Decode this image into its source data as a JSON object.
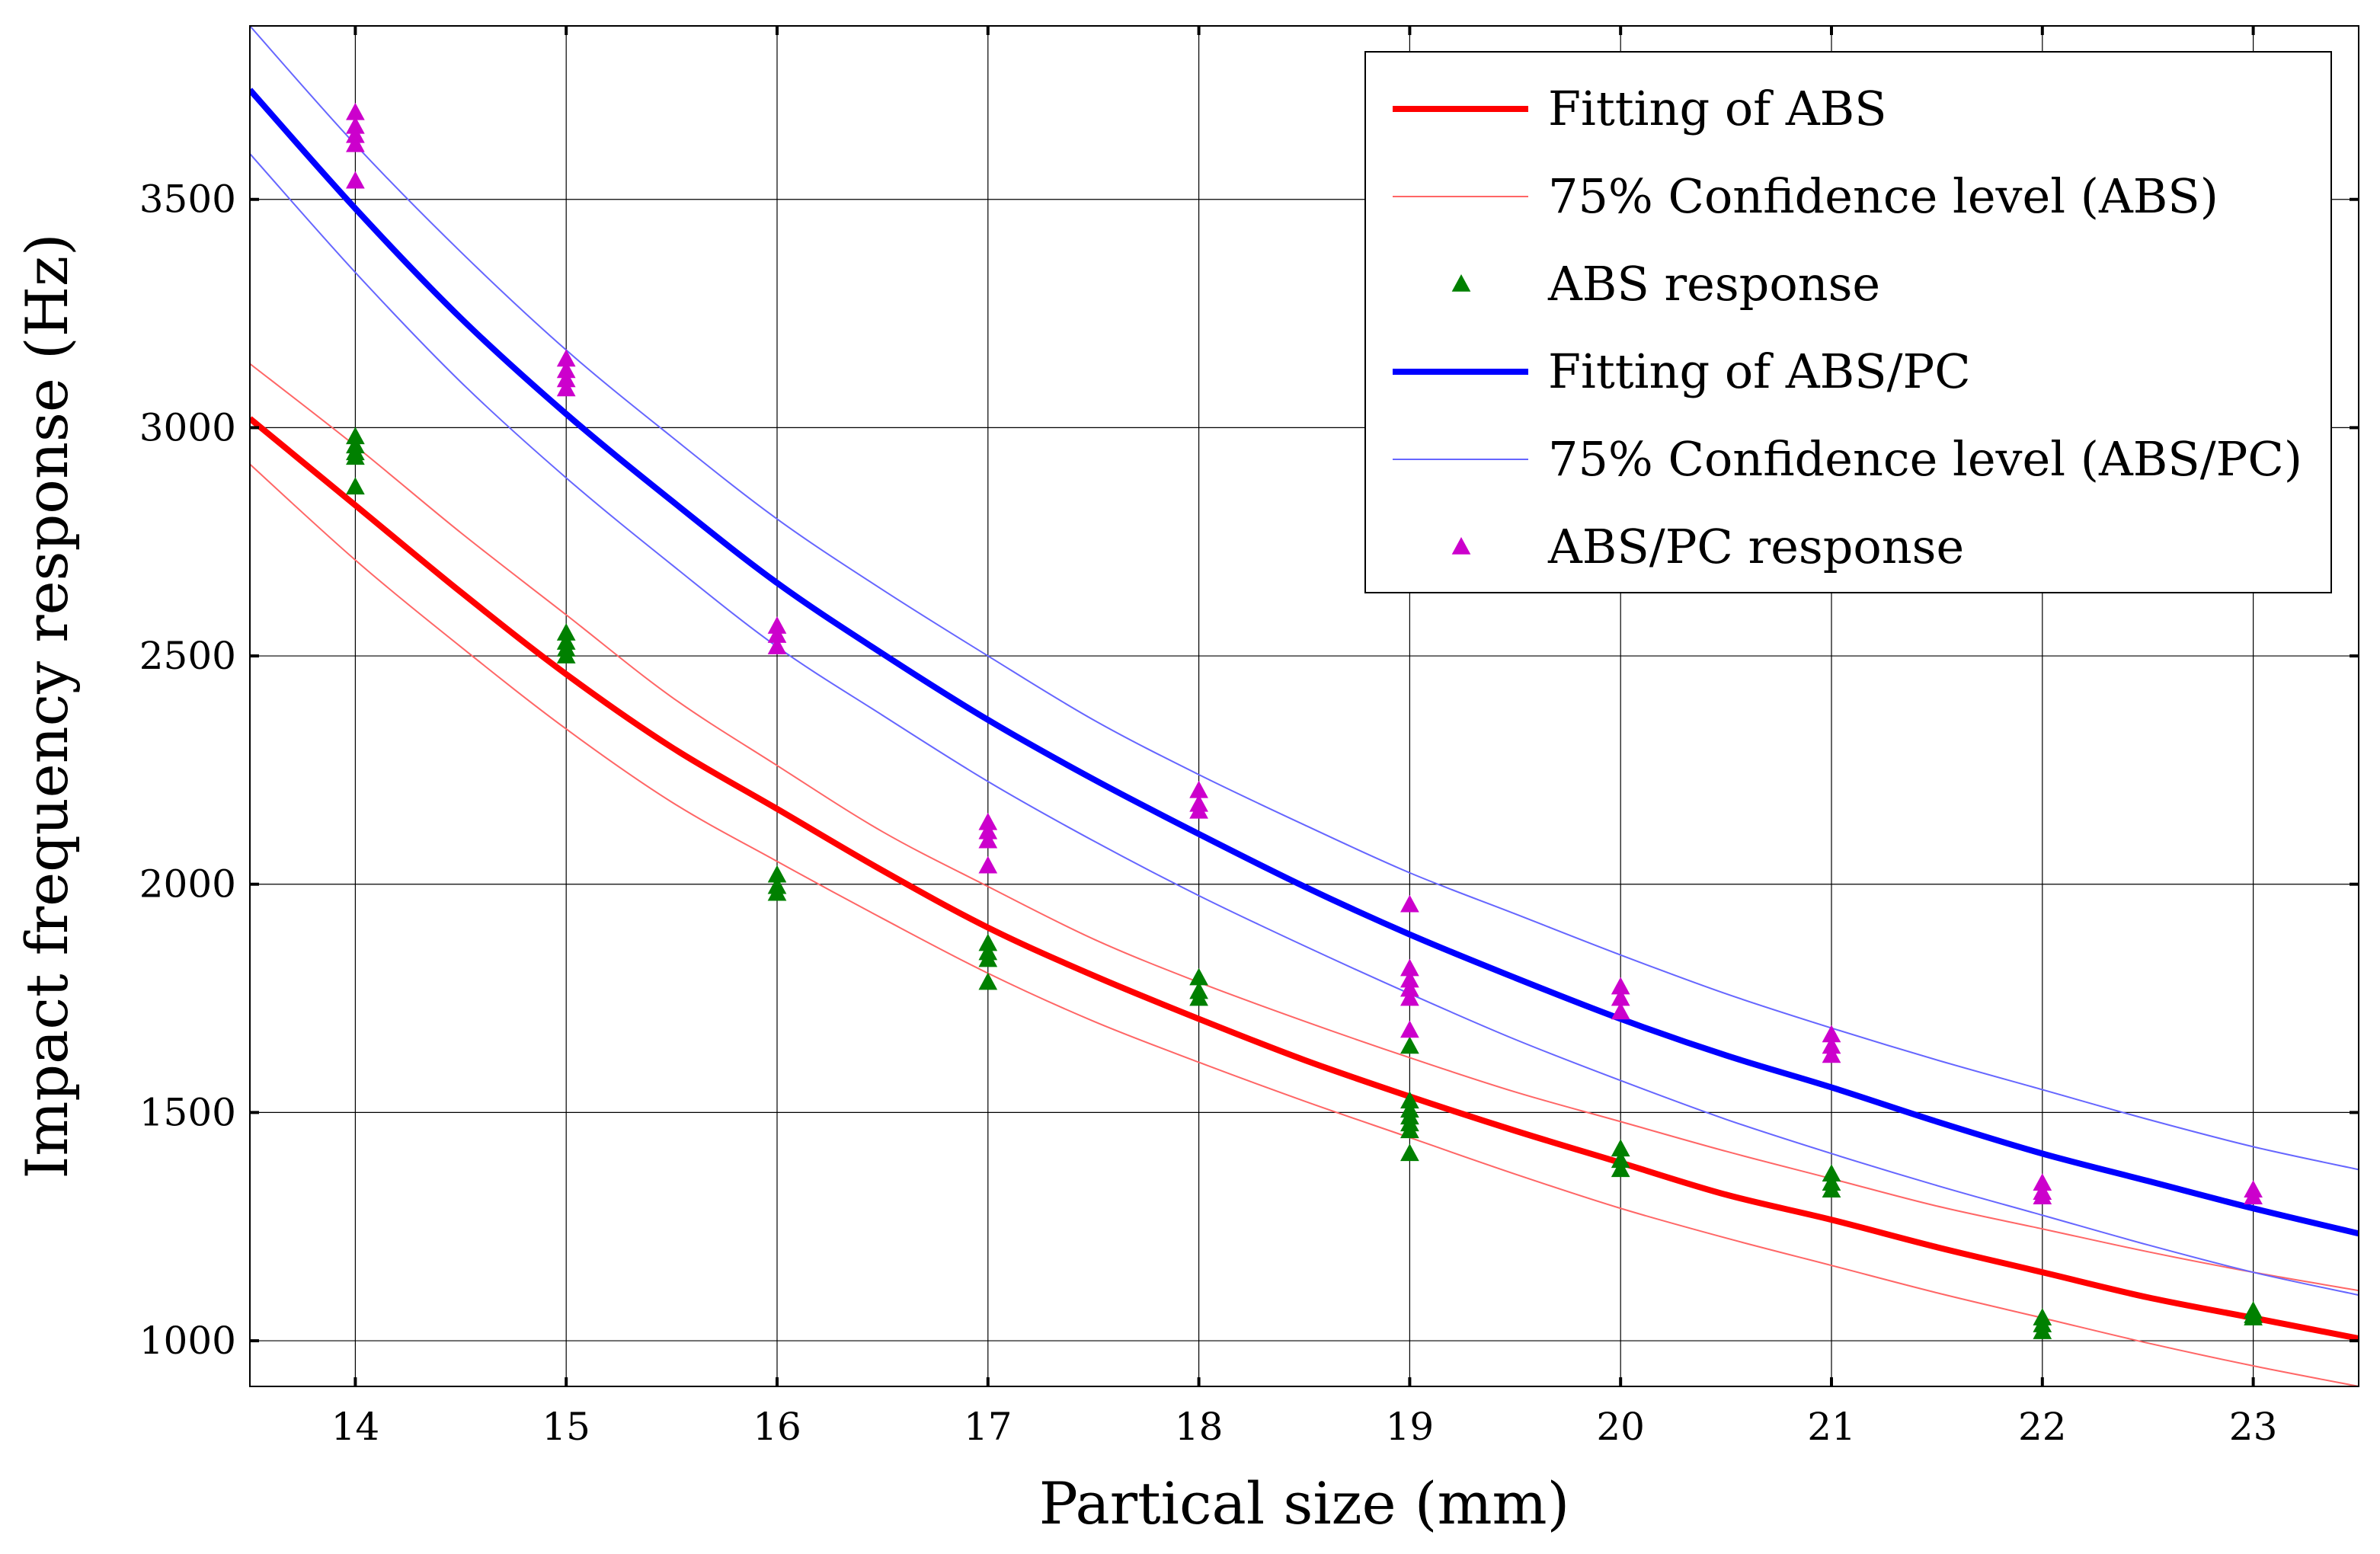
{
  "chart_data": {
    "type": "line",
    "title": "",
    "xlabel": "Partical size (mm)",
    "ylabel": "Impact frequency response (Hz)",
    "xlim": [
      13.5,
      23.5
    ],
    "ylim": [
      900,
      3880
    ],
    "xticks": [
      14,
      15,
      16,
      17,
      18,
      19,
      20,
      21,
      22,
      23
    ],
    "yticks": [
      1000,
      1500,
      2000,
      2500,
      3000,
      3500
    ],
    "grid": true,
    "legend_position": "top-right",
    "colors": {
      "abs_fit": "#ff0000",
      "abs_conf": "#ff6666",
      "abs_points": "#008000",
      "abspc_fit": "#0000ff",
      "abspc_conf": "#6666ff",
      "abspc_points": "#cc00cc"
    },
    "series": [
      {
        "name": "Fitting of ABS",
        "kind": "fit",
        "x": [
          13.5,
          14,
          14.5,
          15,
          15.5,
          16,
          16.5,
          17,
          17.5,
          18,
          18.5,
          19,
          19.5,
          20,
          20.5,
          21,
          21.5,
          22,
          22.5,
          23,
          23.5
        ],
        "y": [
          3020,
          2830,
          2640,
          2460,
          2300,
          2165,
          2030,
          1905,
          1800,
          1705,
          1615,
          1535,
          1460,
          1390,
          1320,
          1265,
          1205,
          1150,
          1095,
          1050,
          1005
        ]
      },
      {
        "name": "75% Confidence level (ABS)",
        "kind": "conf_upper",
        "x": [
          13.5,
          14,
          14.5,
          15,
          15.5,
          16,
          16.5,
          17,
          17.5,
          18,
          18.5,
          19,
          19.5,
          20,
          20.5,
          21,
          21.5,
          22,
          22.5,
          23,
          23.5
        ],
        "y": [
          3140,
          2960,
          2770,
          2590,
          2410,
          2260,
          2115,
          1995,
          1880,
          1785,
          1700,
          1620,
          1545,
          1480,
          1415,
          1355,
          1295,
          1245,
          1195,
          1150,
          1110
        ]
      },
      {
        "name": "75% Confidence level (ABS) lower",
        "kind": "conf_lower",
        "x": [
          13.5,
          14,
          14.5,
          15,
          15.5,
          16,
          16.5,
          17,
          17.5,
          18,
          18.5,
          19,
          19.5,
          20,
          20.5,
          21,
          21.5,
          22,
          22.5,
          23,
          23.5
        ],
        "y": [
          2920,
          2710,
          2520,
          2340,
          2180,
          2050,
          1925,
          1805,
          1700,
          1610,
          1525,
          1445,
          1365,
          1290,
          1225,
          1165,
          1105,
          1050,
          995,
          945,
          900
        ]
      },
      {
        "name": "ABS response",
        "kind": "points",
        "x": [
          14,
          14,
          14,
          14,
          14,
          15,
          15,
          15,
          15,
          16,
          16,
          16,
          17,
          17,
          17,
          17,
          18,
          18,
          18,
          19,
          19,
          19,
          19,
          19,
          19,
          19,
          20,
          20,
          20,
          21,
          21,
          21,
          22,
          22,
          22,
          23,
          23,
          23
        ],
        "y": [
          2980,
          2960,
          2945,
          2935,
          2870,
          2550,
          2530,
          2515,
          2500,
          2020,
          1995,
          1980,
          1870,
          1850,
          1835,
          1785,
          1795,
          1765,
          1750,
          1645,
          1525,
          1505,
          1490,
          1475,
          1460,
          1410,
          1420,
          1395,
          1375,
          1365,
          1345,
          1330,
          1050,
          1035,
          1020,
          1065,
          1055,
          1050
        ]
      },
      {
        "name": "Fitting of ABS/PC",
        "kind": "fit",
        "x": [
          13.5,
          14,
          14.5,
          15,
          15.5,
          16,
          16.5,
          17,
          17.5,
          18,
          18.5,
          19,
          19.5,
          20,
          20.5,
          21,
          21.5,
          22,
          22.5,
          23,
          23.5
        ],
        "y": [
          3740,
          3480,
          3240,
          3030,
          2840,
          2660,
          2505,
          2360,
          2230,
          2110,
          1995,
          1890,
          1795,
          1705,
          1625,
          1555,
          1480,
          1410,
          1350,
          1290,
          1235
        ]
      },
      {
        "name": "75% Confidence level (ABS/PC)",
        "kind": "conf_upper",
        "x": [
          13.5,
          14,
          14.5,
          15,
          15.5,
          16,
          16.5,
          17,
          17.5,
          18,
          18.5,
          19,
          19.5,
          20,
          20.5,
          21,
          21.5,
          22,
          22.5,
          23,
          23.5
        ],
        "y": [
          3880,
          3620,
          3385,
          3170,
          2980,
          2800,
          2645,
          2500,
          2360,
          2240,
          2130,
          2025,
          1935,
          1845,
          1760,
          1685,
          1615,
          1550,
          1485,
          1425,
          1375
        ]
      },
      {
        "name": "75% Confidence level (ABS/PC) lower",
        "kind": "conf_lower",
        "x": [
          13.5,
          14,
          14.5,
          15,
          15.5,
          16,
          16.5,
          17,
          17.5,
          18,
          18.5,
          19,
          19.5,
          20,
          20.5,
          21,
          21.5,
          22,
          22.5,
          23,
          23.5
        ],
        "y": [
          3600,
          3340,
          3100,
          2890,
          2700,
          2520,
          2370,
          2225,
          2095,
          1975,
          1865,
          1760,
          1660,
          1570,
          1485,
          1410,
          1340,
          1275,
          1210,
          1150,
          1100
        ]
      },
      {
        "name": "ABS/PC response",
        "kind": "points",
        "x": [
          14,
          14,
          14,
          14,
          14,
          15,
          15,
          15,
          15,
          16,
          16,
          16,
          17,
          17,
          17,
          17,
          18,
          18,
          18,
          19,
          19,
          19,
          19,
          19,
          19,
          20,
          20,
          20,
          21,
          21,
          21,
          22,
          22,
          22,
          23,
          23
        ],
        "y": [
          3690,
          3660,
          3640,
          3620,
          3540,
          3150,
          3125,
          3105,
          3085,
          2565,
          2545,
          2520,
          2135,
          2115,
          2095,
          2040,
          2205,
          2175,
          2160,
          1955,
          1815,
          1790,
          1770,
          1750,
          1680,
          1775,
          1750,
          1720,
          1670,
          1645,
          1625,
          1345,
          1325,
          1315,
          1330,
          1315
        ]
      }
    ],
    "legend": [
      {
        "label": "Fitting of ABS",
        "style": "thick-line",
        "series_index": 0
      },
      {
        "label": "75% Confidence level (ABS)",
        "style": "thin-line",
        "series_index": 1
      },
      {
        "label": "ABS response",
        "style": "triangle",
        "series_index": 3
      },
      {
        "label": "Fitting of ABS/PC",
        "style": "thick-line",
        "series_index": 4
      },
      {
        "label": "75% Confidence level (ABS/PC)",
        "style": "thin-line",
        "series_index": 5
      },
      {
        "label": "ABS/PC response",
        "style": "triangle",
        "series_index": 7
      }
    ]
  }
}
